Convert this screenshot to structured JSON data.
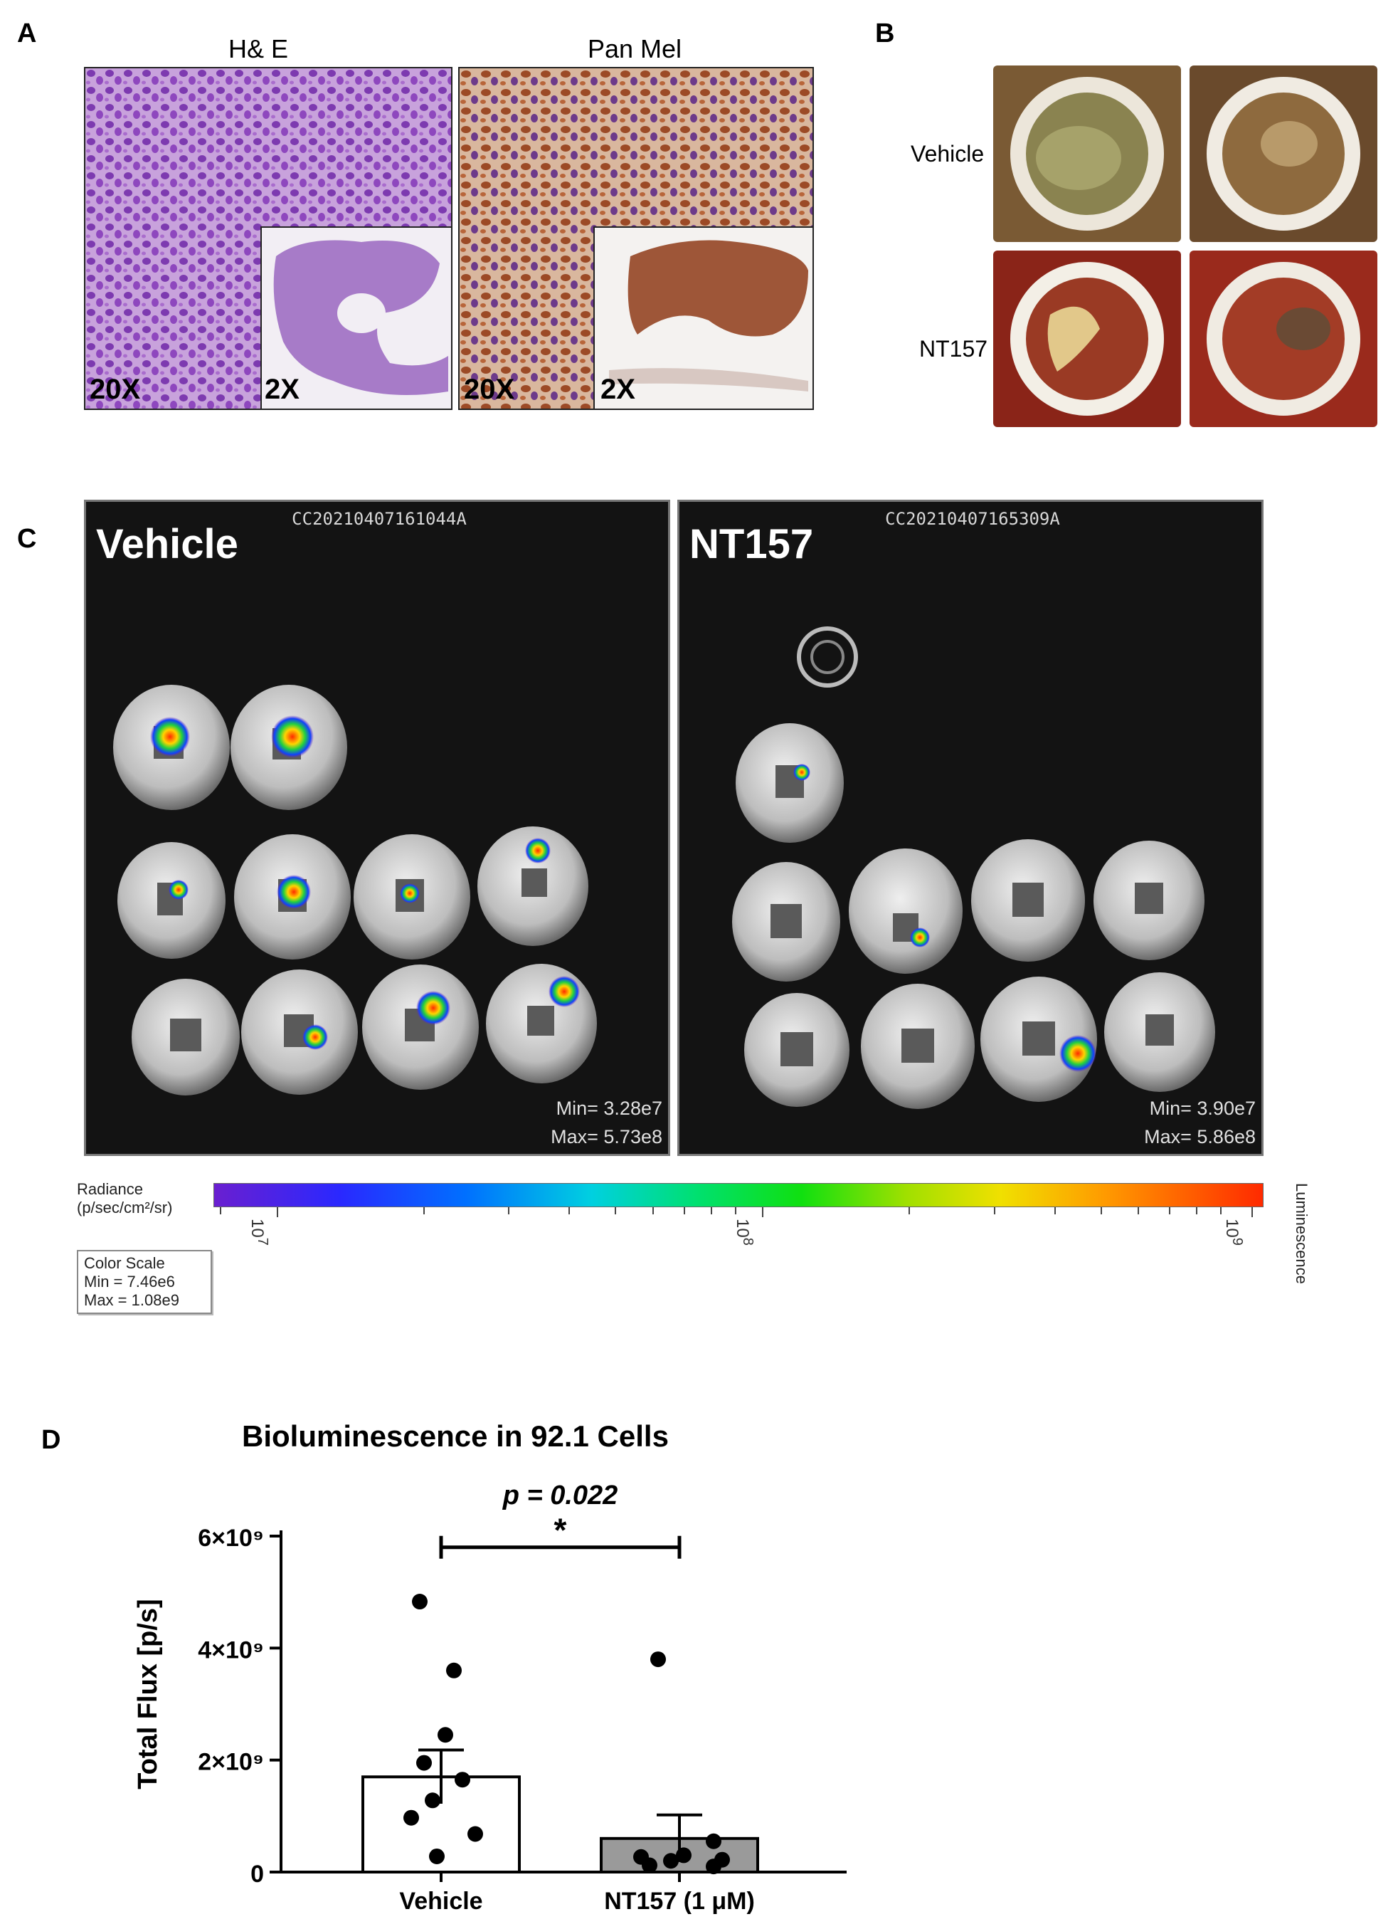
{
  "panels": {
    "A": "A",
    "B": "B",
    "C": "C",
    "D": "D"
  },
  "panel_a": {
    "he_title": "H& E",
    "panmel_title": "Pan Mel",
    "he_mag_main": "20X",
    "he_mag_inset": "2X",
    "pm_mag_main": "20X",
    "pm_mag_inset": "2X",
    "colors": {
      "he": "#a04cc4",
      "panmel": "#b86a42"
    }
  },
  "panel_b": {
    "row1_label": "Vehicle",
    "row2_label": "NT157"
  },
  "panel_c": {
    "vehicle": {
      "id": "CC20210407161044A",
      "label": "Vehicle",
      "min": "Min= 3.28e7",
      "max": "Max= 5.73e8"
    },
    "nt157": {
      "id": "CC20210407165309A",
      "label": "NT157",
      "min": "Min= 3.90e7",
      "max": "Max= 5.86e8"
    },
    "colorbar": {
      "label_line1": "Radiance",
      "label_line2": "(p/sec/cm²/sr)",
      "side_label": "Luminescence",
      "decades": [
        "10",
        "10",
        "10"
      ],
      "decade_exp": [
        "7",
        "8",
        "9"
      ],
      "color_scale_title": "Color Scale",
      "color_scale_min": "Min = 7.46e6",
      "color_scale_max": "Max = 1.08e9"
    }
  },
  "chart_data": {
    "type": "bar",
    "title": "Bioluminescence in 92.1 Cells",
    "categories": [
      "Vehicle",
      "NT157 (1 μM)"
    ],
    "values": [
      1700000000.0,
      600000000.0
    ],
    "error_bar": [
      480000000.0,
      420000000.0
    ],
    "points": [
      [
        4830000000.0,
        3600000000.0,
        2450000000.0,
        1950000000.0,
        1650000000.0,
        1280000000.0,
        970000000.0,
        680000000.0,
        280000000.0
      ],
      [
        3800000000.0,
        550000000.0,
        300000000.0,
        270000000.0,
        220000000.0,
        200000000.0,
        120000000.0,
        100000000.0
      ]
    ],
    "bar_fills": [
      "#ffffff",
      "#9a9a9a"
    ],
    "ylabel": "Total Flux [p/s]",
    "ylim": [
      0,
      6000000000.0
    ],
    "yticks": [
      0,
      2000000000.0,
      4000000000.0,
      6000000000.0
    ],
    "ytick_labels": [
      "0",
      "2×10⁹",
      "4×10⁹",
      "6×10⁹"
    ],
    "significance": {
      "p_text": "p = 0.022",
      "star": "*"
    }
  }
}
